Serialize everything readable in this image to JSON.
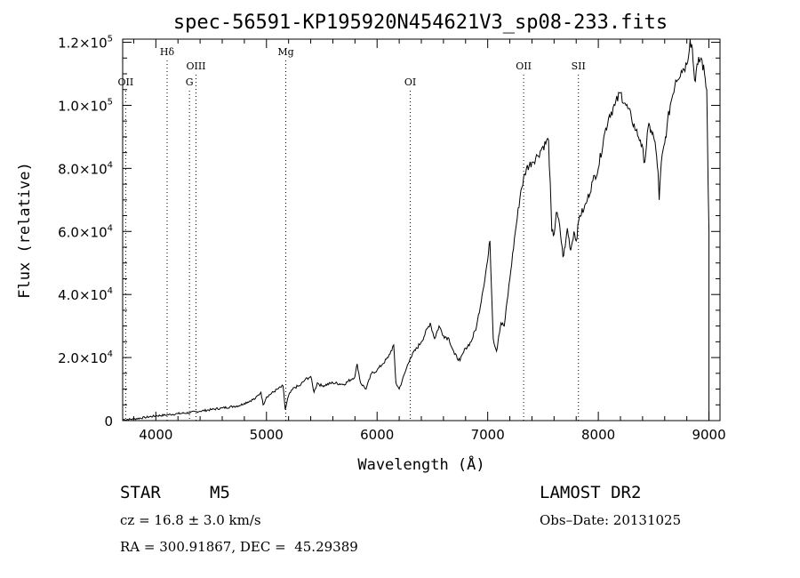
{
  "chart_data": {
    "type": "line",
    "title": "spec-56591-KP195920N454621V3_sp08-233.fits",
    "xlabel": "Wavelength (Å)",
    "ylabel": "Flux (relative)",
    "xlim": [
      3700,
      9100
    ],
    "ylim": [
      0,
      121000
    ],
    "x_ticks": [
      {
        "value": 4000,
        "label": "4000"
      },
      {
        "value": 5000,
        "label": "5000"
      },
      {
        "value": 6000,
        "label": "6000"
      },
      {
        "value": 7000,
        "label": "7000"
      },
      {
        "value": 8000,
        "label": "8000"
      },
      {
        "value": 9000,
        "label": "9000"
      }
    ],
    "y_ticks": [
      {
        "value": 0,
        "mant": "0",
        "exp": ""
      },
      {
        "value": 20000,
        "mant": "2.0×10",
        "exp": "4"
      },
      {
        "value": 40000,
        "mant": "4.0×10",
        "exp": "4"
      },
      {
        "value": 60000,
        "mant": "6.0×10",
        "exp": "4"
      },
      {
        "value": 80000,
        "mant": "8.0×10",
        "exp": "4"
      },
      {
        "value": 100000,
        "mant": "1.0×10",
        "exp": "5"
      },
      {
        "value": 120000,
        "mant": "1.2×10",
        "exp": "5"
      }
    ],
    "spectral_lines": [
      {
        "label": "OII",
        "x": 3727,
        "row": 3
      },
      {
        "label": "Hδ",
        "x": 4102,
        "row": 1
      },
      {
        "label": "G",
        "x": 4304,
        "row": 3
      },
      {
        "label": "OIII",
        "x": 4363,
        "row": 2
      },
      {
        "label": "Mg",
        "x": 5175,
        "row": 1
      },
      {
        "label": "OI",
        "x": 6300,
        "row": 3
      },
      {
        "label": "OII",
        "x": 7325,
        "row": 2
      },
      {
        "label": "SII",
        "x": 7820,
        "row": 2
      }
    ],
    "series": [
      {
        "x": [
          3700,
          3800,
          3900,
          4000,
          4100,
          4200,
          4300,
          4400,
          4500,
          4600,
          4700,
          4760,
          4800,
          4900,
          4950,
          4970,
          5000,
          5100,
          5150,
          5170,
          5200,
          5250,
          5300,
          5350,
          5400,
          5430,
          5460,
          5500,
          5600,
          5700,
          5800,
          5820,
          5850,
          5900,
          5950,
          6000,
          6050,
          6100,
          6150,
          6170,
          6200,
          6250,
          6300,
          6400,
          6480,
          6520,
          6560,
          6600,
          6650,
          6700,
          6750,
          6800,
          6850,
          6900,
          6950,
          7000,
          7020,
          7050,
          7080,
          7100,
          7120,
          7150,
          7200,
          7250,
          7300,
          7350,
          7400,
          7450,
          7500,
          7550,
          7580,
          7600,
          7620,
          7650,
          7680,
          7700,
          7720,
          7750,
          7780,
          7800,
          7830,
          7870,
          7900,
          7950,
          8000,
          8050,
          8100,
          8150,
          8200,
          8250,
          8300,
          8340,
          8380,
          8420,
          8450,
          8480,
          8500,
          8520,
          8540,
          8550,
          8570,
          8600,
          8620,
          8650,
          8700,
          8750,
          8800,
          8830,
          8850,
          8870,
          8900,
          8930,
          8960,
          8980,
          9000
        ],
        "y": [
          300,
          500,
          1000,
          1500,
          1800,
          2200,
          2500,
          3000,
          3500,
          4000,
          4500,
          4800,
          5500,
          7000,
          9000,
          5000,
          7500,
          10000,
          11000,
          3500,
          8000,
          10500,
          11000,
          13000,
          14000,
          9000,
          12000,
          11000,
          12000,
          11500,
          14000,
          18000,
          12000,
          10000,
          15000,
          16000,
          18000,
          20000,
          24000,
          12000,
          10000,
          15000,
          20000,
          25000,
          31000,
          26000,
          30000,
          27000,
          26000,
          21000,
          19000,
          23000,
          25000,
          30000,
          40000,
          51000,
          57000,
          26000,
          22000,
          27000,
          31000,
          30000,
          45000,
          60000,
          73000,
          80000,
          82000,
          84000,
          87000,
          89000,
          60000,
          59000,
          66000,
          62000,
          52000,
          55000,
          61000,
          54000,
          60000,
          57000,
          65000,
          67000,
          70000,
          76000,
          80000,
          90000,
          97000,
          100000,
          104000,
          100000,
          96000,
          92000,
          89000,
          82000,
          93000,
          92000,
          90000,
          86000,
          79000,
          70000,
          82000,
          88000,
          93000,
          100000,
          108000,
          111000,
          113000,
          121000,
          118000,
          108000,
          113000,
          115000,
          110000,
          105000,
          60000
        ]
      }
    ]
  },
  "info": {
    "class_label": "STAR",
    "subclass": "M5",
    "survey": "LAMOST DR2",
    "cz": "cz = 16.8 ± 3.0 km/s",
    "obs_date": "Obs–Date: 20131025",
    "radec": "RA = 300.91867, DEC =  45.29389"
  }
}
